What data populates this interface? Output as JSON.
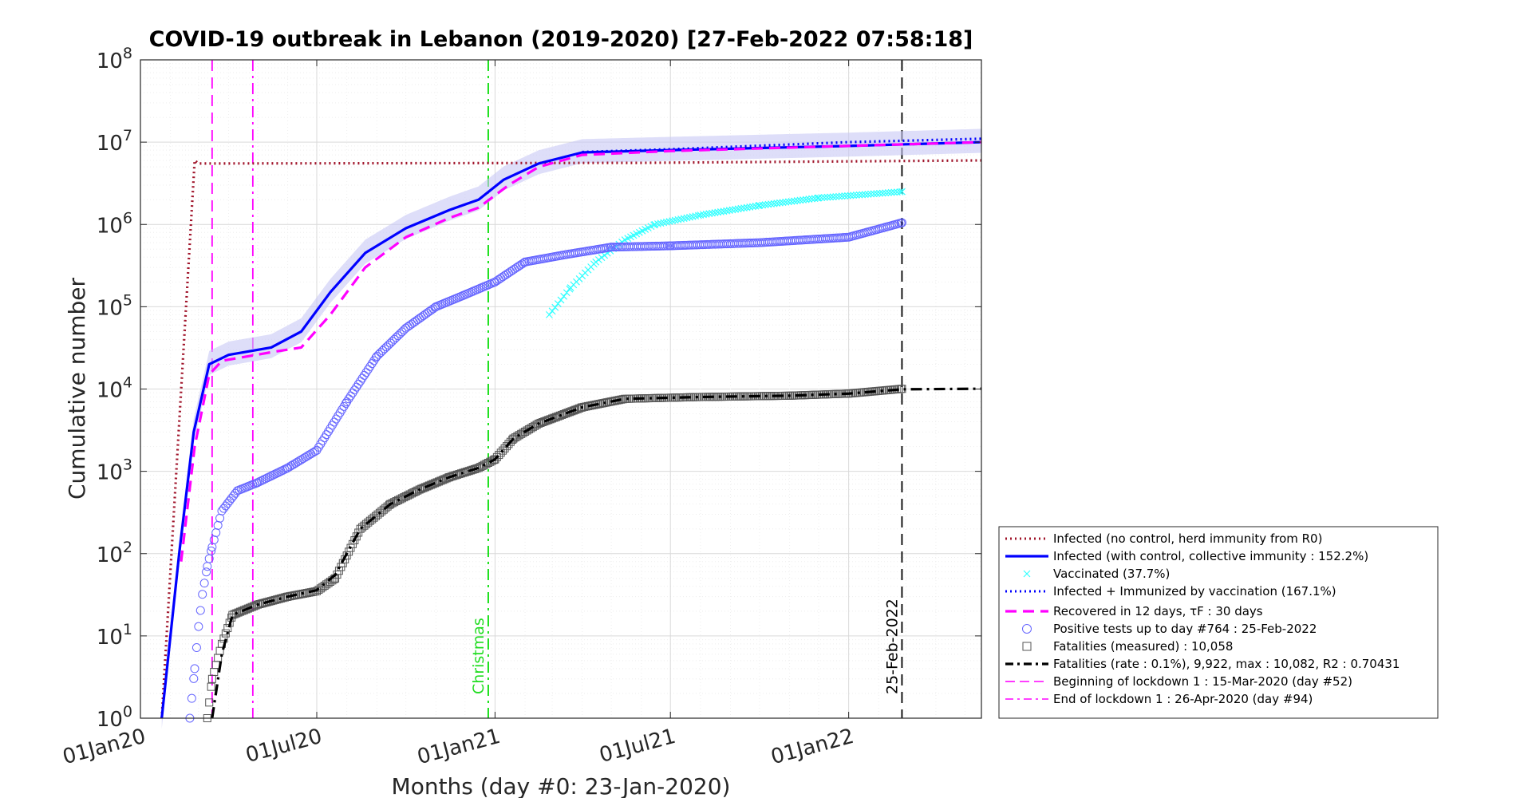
{
  "chart_data": {
    "type": "line",
    "title": "COVID-19 outbreak in Lebanon (2019-2020) [27-Feb-2022 07:58:18]",
    "xlabel": "Months (day #0: 23-Jan-2020)",
    "ylabel": "Cumulative number",
    "yscale": "log",
    "ylim": [
      1,
      100000000
    ],
    "xlim": [
      "2020-01-01",
      "2022-05-18"
    ],
    "grid": true,
    "legend_position": "bottom-right, outside plot",
    "x_ticks": [
      "01Jan20",
      "01Jul20",
      "01Jan21",
      "01Jul21",
      "01Jan22"
    ],
    "y_ticks": [
      "10^0",
      "10^1",
      "10^2",
      "10^3",
      "10^4",
      "10^5",
      "10^6",
      "10^7",
      "10^8"
    ],
    "series": [
      {
        "name": "Infected (no control, herd immunity from R0)",
        "style": "dotted",
        "color": "#a0142a",
        "points": [
          [
            "2020-01-23",
            1
          ],
          [
            "2020-02-26",
            6000000
          ],
          [
            "2020-03-01",
            5500000
          ],
          [
            "2021-06-01",
            5600000
          ],
          [
            "2022-05-18",
            6000000
          ]
        ]
      },
      {
        "name": "Infected (with control, collective immunity : 152.2%)",
        "style": "solid",
        "color": "#0000ff",
        "points": [
          [
            "2020-01-23",
            1
          ],
          [
            "2020-02-10",
            100
          ],
          [
            "2020-02-25",
            3000
          ],
          [
            "2020-03-12",
            20000
          ],
          [
            "2020-04-01",
            26000
          ],
          [
            "2020-05-15",
            32000
          ],
          [
            "2020-06-15",
            50000
          ],
          [
            "2020-07-15",
            150000
          ],
          [
            "2020-08-20",
            450000
          ],
          [
            "2020-10-01",
            900000
          ],
          [
            "2020-11-15",
            1500000
          ],
          [
            "2020-12-15",
            2000000
          ],
          [
            "2021-01-10",
            3500000
          ],
          [
            "2021-02-15",
            5500000
          ],
          [
            "2021-04-01",
            7500000
          ],
          [
            "2021-07-01",
            8000000
          ],
          [
            "2022-01-01",
            9000000
          ],
          [
            "2022-05-18",
            10000000
          ]
        ]
      },
      {
        "name": "Vaccinated (37.7%)",
        "style": "x-markers",
        "color": "#33ffff",
        "points": [
          [
            "2021-02-26",
            80000
          ],
          [
            "2021-03-20",
            170000
          ],
          [
            "2021-04-15",
            350000
          ],
          [
            "2021-05-15",
            650000
          ],
          [
            "2021-06-15",
            1000000
          ],
          [
            "2021-08-01",
            1300000
          ],
          [
            "2021-10-01",
            1700000
          ],
          [
            "2021-12-01",
            2100000
          ],
          [
            "2022-02-25",
            2500000
          ]
        ]
      },
      {
        "name": "Infected + Immunized by vaccination (167.1%)",
        "style": "dotted",
        "color": "#0000ff",
        "points": [
          [
            "2021-04-01",
            7600000
          ],
          [
            "2021-07-01",
            8200000
          ],
          [
            "2022-01-01",
            10000000
          ],
          [
            "2022-05-18",
            11000000
          ]
        ]
      },
      {
        "name": "Recovered in 12 days, τF : 30 days",
        "style": "dashed",
        "color": "#ff00ff",
        "points": [
          [
            "2020-02-12",
            80
          ],
          [
            "2020-02-26",
            2000
          ],
          [
            "2020-03-12",
            15000
          ],
          [
            "2020-03-25",
            22000
          ],
          [
            "2020-05-15",
            28000
          ],
          [
            "2020-06-15",
            32000
          ],
          [
            "2020-07-15",
            80000
          ],
          [
            "2020-08-20",
            300000
          ],
          [
            "2020-10-01",
            700000
          ],
          [
            "2020-11-15",
            1200000
          ],
          [
            "2020-12-15",
            1600000
          ],
          [
            "2021-01-15",
            3000000
          ],
          [
            "2021-02-15",
            5000000
          ],
          [
            "2021-04-01",
            7000000
          ],
          [
            "2021-07-01",
            7800000
          ],
          [
            "2022-01-01",
            9000000
          ],
          [
            "2022-05-18",
            10000000
          ]
        ]
      },
      {
        "name": "Positive tests up to day #764 : 25-Feb-2022",
        "style": "circle-markers",
        "color": "#6666ff",
        "points": [
          [
            "2020-02-21",
            1
          ],
          [
            "2020-02-26",
            4
          ],
          [
            "2020-03-01",
            13
          ],
          [
            "2020-03-05",
            32
          ],
          [
            "2020-03-10",
            70
          ],
          [
            "2020-03-15",
            120
          ],
          [
            "2020-03-25",
            330
          ],
          [
            "2020-04-10",
            580
          ],
          [
            "2020-05-01",
            730
          ],
          [
            "2020-06-01",
            1100
          ],
          [
            "2020-07-01",
            1800
          ],
          [
            "2020-08-01",
            7000
          ],
          [
            "2020-09-01",
            25000
          ],
          [
            "2020-10-01",
            55000
          ],
          [
            "2020-11-01",
            100000
          ],
          [
            "2020-12-01",
            140000
          ],
          [
            "2021-01-01",
            200000
          ],
          [
            "2021-02-01",
            350000
          ],
          [
            "2021-03-15",
            430000
          ],
          [
            "2021-05-01",
            530000
          ],
          [
            "2021-07-01",
            550000
          ],
          [
            "2021-10-01",
            600000
          ],
          [
            "2022-01-01",
            700000
          ],
          [
            "2022-02-25",
            1050000
          ]
        ]
      },
      {
        "name": "Fatalities (measured) : 10,058",
        "style": "square-markers",
        "color": "#555555",
        "points": [
          [
            "2020-03-10",
            1
          ],
          [
            "2020-03-15",
            3
          ],
          [
            "2020-03-25",
            8
          ],
          [
            "2020-04-05",
            18
          ],
          [
            "2020-05-01",
            24
          ],
          [
            "2020-06-01",
            30
          ],
          [
            "2020-07-01",
            35
          ],
          [
            "2020-07-20",
            50
          ],
          [
            "2020-08-15",
            200
          ],
          [
            "2020-09-15",
            400
          ],
          [
            "2020-10-15",
            600
          ],
          [
            "2020-11-15",
            850
          ],
          [
            "2020-12-15",
            1100
          ],
          [
            "2021-01-01",
            1400
          ],
          [
            "2021-01-20",
            2500
          ],
          [
            "2021-02-15",
            3800
          ],
          [
            "2021-04-01",
            6000
          ],
          [
            "2021-05-15",
            7600
          ],
          [
            "2021-08-01",
            8000
          ],
          [
            "2021-11-01",
            8300
          ],
          [
            "2022-01-01",
            8800
          ],
          [
            "2022-02-25",
            10058
          ]
        ]
      },
      {
        "name": "Fatalities (rate : 0.1%), 9,922, max : 10,082, R2 : 0.70431",
        "style": "dash-dot",
        "color": "#000000",
        "points": [
          [
            "2020-03-15",
            1
          ],
          [
            "2020-03-25",
            6
          ],
          [
            "2020-04-05",
            18
          ],
          [
            "2020-05-01",
            24
          ],
          [
            "2020-06-01",
            30
          ],
          [
            "2020-07-01",
            36
          ],
          [
            "2020-07-20",
            55
          ],
          [
            "2020-08-15",
            200
          ],
          [
            "2020-09-15",
            400
          ],
          [
            "2020-10-15",
            600
          ],
          [
            "2020-11-15",
            850
          ],
          [
            "2020-12-15",
            1100
          ],
          [
            "2021-01-01",
            1400
          ],
          [
            "2021-01-20",
            2500
          ],
          [
            "2021-02-15",
            3800
          ],
          [
            "2021-04-01",
            6000
          ],
          [
            "2021-05-15",
            7600
          ],
          [
            "2021-08-01",
            8000
          ],
          [
            "2021-11-01",
            8300
          ],
          [
            "2022-01-01",
            8800
          ],
          [
            "2022-02-25",
            9922
          ],
          [
            "2022-05-18",
            10082
          ]
        ]
      }
    ],
    "vlines": [
      {
        "name": "Beginning of lockdown 1 : 15-Mar-2020 (day #52)",
        "x": "2020-03-15",
        "style": "dashed",
        "color": "#ff00ff"
      },
      {
        "name": "End of lockdown 1 : 26-Apr-2020 (day #94)",
        "x": "2020-04-26",
        "style": "dash-dot",
        "color": "#ff00ff"
      },
      {
        "name": "Christmas",
        "x": "2020-12-25",
        "style": "dash-dot",
        "color": "#00dd00"
      },
      {
        "name": "25-Feb-2022",
        "x": "2022-02-25",
        "style": "dashed",
        "color": "#000000"
      }
    ],
    "annotations": [
      "Christmas",
      "25-Feb-2022"
    ],
    "legend": [
      "Infected (no control, herd immunity from R0)",
      "Infected (with control, collective immunity : 152.2%)",
      "Vaccinated (37.7%)",
      "Infected + Immunized by vaccination (167.1%)",
      "Recovered in 12 days, τF : 30 days",
      "Positive tests up to day #764 : 25-Feb-2022",
      "Fatalities (measured) : 10,058",
      "Fatalities (rate : 0.1%), 9,922, max : 10,082, R2 : 0.70431",
      "Beginning of lockdown 1 : 15-Mar-2020 (day #52)",
      "End of lockdown 1 : 26-Apr-2020 (day #94)"
    ]
  }
}
